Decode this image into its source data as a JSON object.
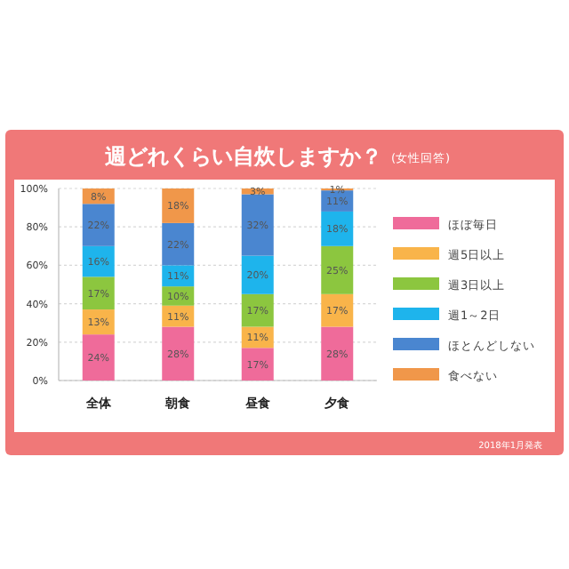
{
  "chart_data": {
    "type": "bar",
    "stacked": true,
    "title": "週どれくらい自炊しますか？",
    "subtitle": "(女性回答)",
    "annotations": [
      "2018年1月発表"
    ],
    "categories": [
      "全体",
      "朝食",
      "昼食",
      "夕食"
    ],
    "ylim": [
      0,
      100
    ],
    "yticks": [
      {
        "value": 0,
        "label": "0%"
      },
      {
        "value": 20,
        "label": "20%"
      },
      {
        "value": 40,
        "label": "40%"
      },
      {
        "value": 60,
        "label": "60%"
      },
      {
        "value": 80,
        "label": "80%"
      },
      {
        "value": 100,
        "label": "100%"
      }
    ],
    "grid": "y",
    "legend": "right",
    "series": [
      {
        "name": "ほぼ毎日",
        "color": "#ef6b9a",
        "values": [
          24,
          28,
          17,
          28
        ],
        "value_labels": [
          "24%",
          "28%",
          "17%",
          "28%"
        ]
      },
      {
        "name": "週5日以上",
        "color": "#f9b44a",
        "values": [
          13,
          11,
          11,
          17
        ],
        "value_labels": [
          "13%",
          "11%",
          "11%",
          "17%"
        ]
      },
      {
        "name": "週3日以上",
        "color": "#8cc63f",
        "values": [
          17,
          10,
          17,
          25
        ],
        "value_labels": [
          "17%",
          "10%",
          "17%",
          "25%"
        ]
      },
      {
        "name": "週1～2日",
        "color": "#1eb4ec",
        "values": [
          16,
          11,
          20,
          18
        ],
        "value_labels": [
          "16%",
          "11%",
          "20%",
          "18%"
        ]
      },
      {
        "name": "ほとんどしない",
        "color": "#4a86d0",
        "values": [
          22,
          22,
          32,
          11
        ],
        "value_labels": [
          "22%",
          "22%",
          "32%",
          "11%"
        ]
      },
      {
        "name": "食べない",
        "color": "#f0974a",
        "values": [
          8,
          18,
          3,
          1
        ],
        "value_labels": [
          "8%",
          "18%",
          "3%",
          "1%"
        ]
      }
    ]
  }
}
